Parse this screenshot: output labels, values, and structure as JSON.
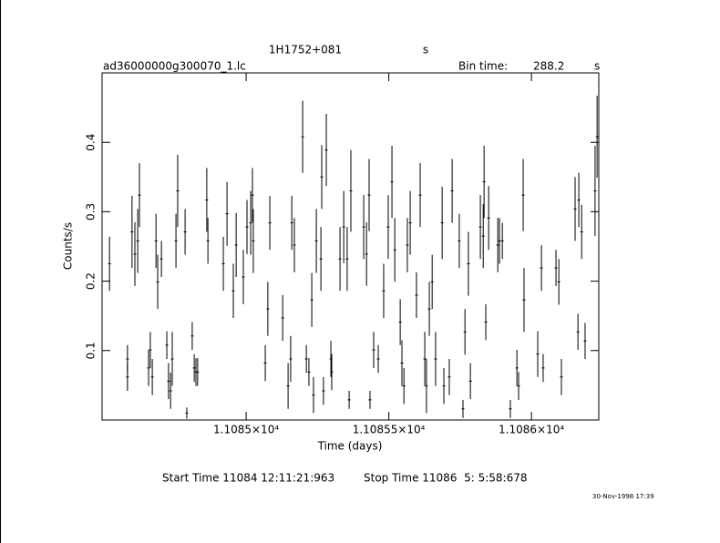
{
  "chart_data": {
    "type": "errorbar",
    "title": "1H1752+081",
    "title_unit": "s",
    "subtitle": "ad36000000g300070_1.lc",
    "bin_time_label": "Bin time:",
    "bin_time": 288.2,
    "bin_time_unit": "s",
    "xlabel": "Time (days)",
    "ylabel": "Counts/s",
    "start_time": "Start Time 11084 12:11:21:963",
    "stop_time": "Stop Time 11086  5: 5:58:678",
    "date_stamp": "30-Nov-1998 17:39",
    "xlim": [
      11084.495,
      11086.236
    ],
    "ylim": [
      0,
      0.5
    ],
    "xticks": [
      {
        "value": 11085,
        "label": "1.1085×10⁴"
      },
      {
        "value": 11085.5,
        "label": "1.10855×10⁴"
      },
      {
        "value": 11086,
        "label": "1.1086×10⁴"
      }
    ],
    "yticks": [
      0.1,
      0.2,
      0.3,
      0.4
    ],
    "color": "#000000",
    "series": [
      {
        "x": [
          11084.521,
          11084.584,
          11084.584,
          11084.6,
          11084.61,
          11084.62,
          11084.626,
          11084.658,
          11084.664,
          11084.671,
          11084.684,
          11084.69,
          11084.703,
          11084.722,
          11084.728,
          11084.735,
          11084.741,
          11084.754,
          11084.76,
          11084.786,
          11084.792,
          11084.811,
          11084.818,
          11084.824,
          11084.83,
          11084.862,
          11084.866,
          11084.92,
          11084.933,
          11084.955,
          11084.965,
          11084.99,
          11085.003,
          11085.016,
          11085.022,
          11085.025,
          11085.067,
          11085.076,
          11085.083,
          11085.128,
          11085.147,
          11085.156,
          11085.16,
          11085.169,
          11085.198,
          11085.211,
          11085.22,
          11085.23,
          11085.236,
          11085.246,
          11085.262,
          11085.265,
          11085.271,
          11085.281,
          11085.297,
          11085.3,
          11085.329,
          11085.342,
          11085.354,
          11085.361,
          11085.367,
          11085.412,
          11085.422,
          11085.431,
          11085.434,
          11085.447,
          11085.463,
          11085.482,
          11085.498,
          11085.511,
          11085.521,
          11085.54,
          11085.546,
          11085.553,
          11085.565,
          11085.575,
          11085.597,
          11085.61,
          11085.626,
          11085.632,
          11085.642,
          11085.652,
          11085.664,
          11085.687,
          11085.693,
          11085.712,
          11085.722,
          11085.747,
          11085.76,
          11085.767,
          11085.779,
          11085.786,
          11085.821,
          11085.831,
          11085.834,
          11085.84,
          11085.85,
          11085.882,
          11085.888,
          11085.898,
          11085.926,
          11085.949,
          11085.955,
          11085.971,
          11085.974,
          11086.022,
          11086.035,
          11086.041,
          11086.086,
          11086.096,
          11086.105,
          11086.153,
          11086.163,
          11086.166,
          11086.176,
          11086.188,
          11086.223,
          11086.23
        ],
        "values": [
          0.225,
          0.088,
          0.062,
          0.271,
          0.239,
          0.258,
          0.324,
          0.075,
          0.101,
          0.062,
          0.258,
          0.199,
          0.232,
          0.108,
          0.056,
          0.042,
          0.088,
          0.258,
          0.33,
          0.271,
          0.01,
          0.121,
          0.075,
          0.069,
          0.069,
          0.317,
          0.258,
          0.225,
          0.297,
          0.186,
          0.252,
          0.206,
          0.278,
          0.284,
          0.324,
          0.258,
          0.082,
          0.16,
          0.284,
          0.147,
          0.049,
          0.088,
          0.284,
          0.252,
          0.408,
          0.088,
          0.069,
          0.173,
          0.036,
          0.258,
          0.232,
          0.35,
          0.042,
          0.389,
          0.088,
          0.069,
          0.232,
          0.278,
          0.232,
          0.029,
          0.33,
          0.278,
          0.239,
          0.324,
          0.029,
          0.101,
          0.088,
          0.186,
          0.278,
          0.343,
          0.245,
          0.141,
          0.082,
          0.049,
          0.252,
          0.284,
          0.18,
          0.324,
          0.088,
          0.049,
          0.16,
          0.199,
          0.088,
          0.284,
          0.049,
          0.062,
          0.33,
          0.258,
          0.016,
          0.127,
          0.225,
          0.056,
          0.278,
          0.265,
          0.343,
          0.141,
          0.291,
          0.252,
          0.258,
          0.258,
          0.016,
          0.075,
          0.049,
          0.324,
          0.173,
          0.095,
          0.219,
          0.075,
          0.219,
          0.199,
          0.062,
          0.304,
          0.127,
          0.317,
          0.271,
          0.114,
          0.33,
          0.408
        ],
        "errors": [
          0.039,
          0.02,
          0.02,
          0.052,
          0.046,
          0.046,
          0.046,
          0.026,
          0.026,
          0.026,
          0.039,
          0.039,
          0.026,
          0.02,
          0.026,
          0.026,
          0.039,
          0.039,
          0.052,
          0.033,
          0.008,
          0.02,
          0.02,
          0.02,
          0.02,
          0.046,
          0.033,
          0.039,
          0.046,
          0.039,
          0.046,
          0.039,
          0.039,
          0.046,
          0.039,
          0.046,
          0.026,
          0.039,
          0.039,
          0.033,
          0.033,
          0.033,
          0.039,
          0.039,
          0.052,
          0.02,
          0.02,
          0.039,
          0.026,
          0.046,
          0.046,
          0.046,
          0.02,
          0.052,
          0.026,
          0.026,
          0.046,
          0.052,
          0.046,
          0.013,
          0.059,
          0.046,
          0.046,
          0.052,
          0.013,
          0.026,
          0.02,
          0.039,
          0.046,
          0.052,
          0.046,
          0.033,
          0.033,
          0.026,
          0.039,
          0.046,
          0.033,
          0.046,
          0.039,
          0.039,
          0.039,
          0.039,
          0.039,
          0.052,
          0.026,
          0.026,
          0.046,
          0.039,
          0.013,
          0.033,
          0.046,
          0.026,
          0.046,
          0.046,
          0.052,
          0.026,
          0.046,
          0.039,
          0.033,
          0.026,
          0.013,
          0.026,
          0.02,
          0.052,
          0.046,
          0.033,
          0.033,
          0.02,
          0.026,
          0.033,
          0.026,
          0.046,
          0.026,
          0.039,
          0.039,
          0.026,
          0.065,
          0.059
        ]
      }
    ]
  }
}
